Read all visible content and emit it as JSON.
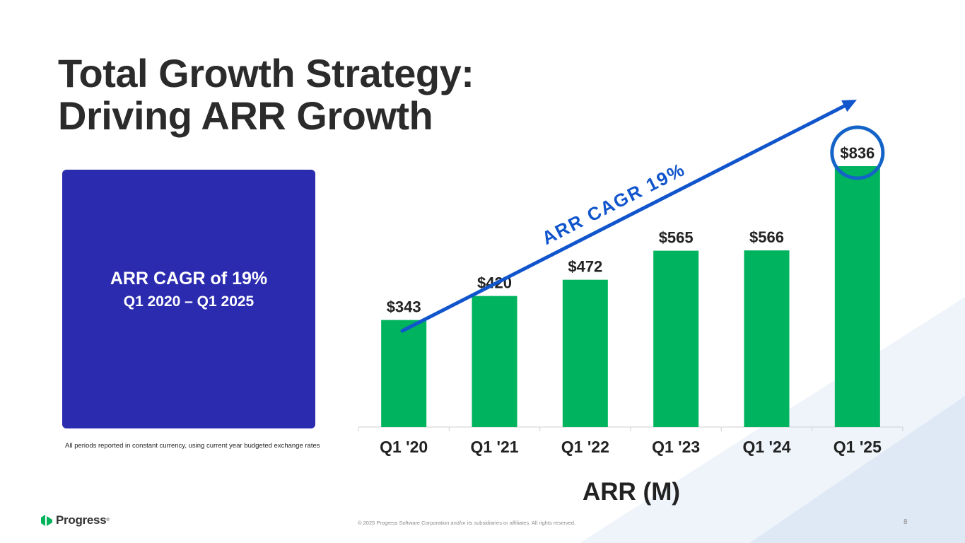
{
  "slide": {
    "title_line1": "Total Growth Strategy:",
    "title_line2": "Driving ARR Growth",
    "page_number": "8",
    "copyright": "© 2025 Progress Software Corporation and/or its subsidiaries or affiliates. All rights reserved.",
    "footnote": "All periods reported in constant currency, using current year budgeted exchange rates"
  },
  "callout": {
    "line1": "ARR CAGR of 19%",
    "line2": "Q1 2020 – Q1 2025",
    "color": "#2b2bb0"
  },
  "logo": {
    "text": "Progress",
    "icon": "progress-chevron-icon",
    "color": "#00b25b"
  },
  "chart_data": {
    "type": "bar",
    "title": "ARR (M)",
    "categories": [
      "Q1 '20",
      "Q1 '21",
      "Q1 '22",
      "Q1 '23",
      "Q1 '24",
      "Q1 '25"
    ],
    "values": [
      343,
      420,
      472,
      565,
      566,
      836
    ],
    "value_labels": [
      "$343",
      "$420",
      "$472",
      "$565",
      "$566",
      "$836"
    ],
    "ylim": [
      0,
      836
    ],
    "bar_color": "#00b35e",
    "highlight_index": 5,
    "highlight_color": "#1464c8",
    "trend_label": "ARR CAGR 19%",
    "trend_color": "#1155cc",
    "xlabel": "ARR (M)",
    "ylabel": ""
  }
}
